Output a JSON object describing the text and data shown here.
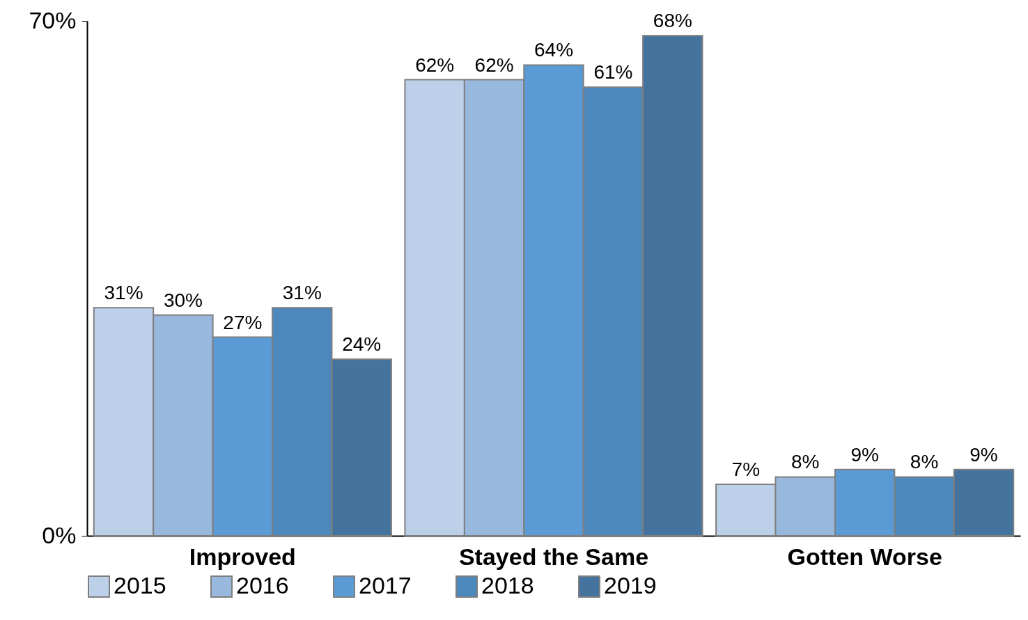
{
  "chart_data": {
    "type": "bar",
    "categories": [
      "Improved",
      "Stayed the Same",
      "Gotten Worse"
    ],
    "series": [
      {
        "name": "2015",
        "color": "#bdd0e9",
        "values": [
          31,
          62,
          7
        ],
        "value_labels": [
          "31%",
          "62%",
          "7%"
        ]
      },
      {
        "name": "2016",
        "color": "#98b8de",
        "values": [
          30,
          62,
          8
        ],
        "value_labels": [
          "30%",
          "62%",
          "8%"
        ]
      },
      {
        "name": "2017",
        "color": "#5a9bd5",
        "values": [
          27,
          64,
          9
        ],
        "value_labels": [
          "27%",
          "64%",
          "9%"
        ]
      },
      {
        "name": "2018",
        "color": "#4d88bc",
        "values": [
          31,
          61,
          8
        ],
        "value_labels": [
          "31%",
          "61%",
          "8%"
        ]
      },
      {
        "name": "2019",
        "color": "#44739e",
        "values": [
          24,
          68,
          9
        ],
        "value_labels": [
          "24%",
          "68%",
          "9%"
        ]
      }
    ],
    "ylim": [
      0,
      70
    ],
    "yticks": [
      {
        "value": 0,
        "label": "0%"
      },
      {
        "value": 70,
        "label": "70%"
      }
    ],
    "legend": "bottom"
  }
}
